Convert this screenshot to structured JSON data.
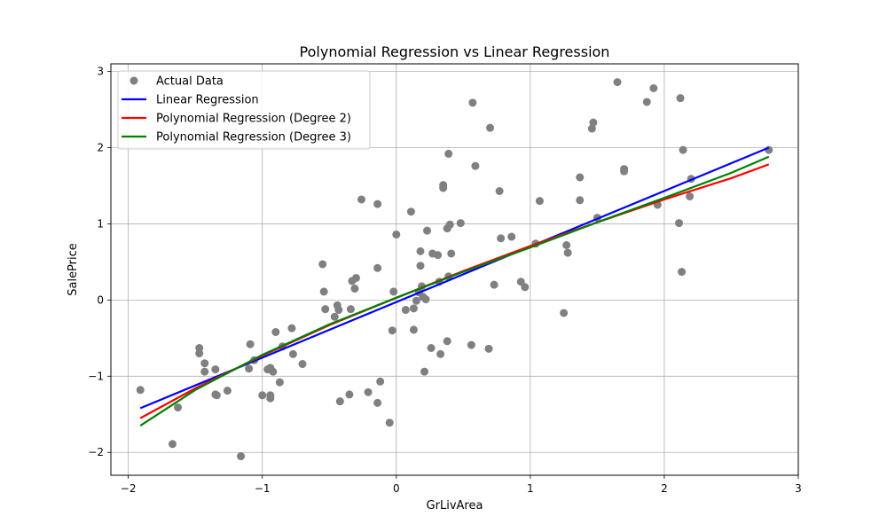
{
  "chart_data": {
    "type": "scatter",
    "title": "Polynomial Regression vs Linear Regression",
    "xlabel": "GrLivArea",
    "ylabel": "SalePrice",
    "xlim": [
      -2.13,
      3.0
    ],
    "ylim": [
      -2.3,
      3.1
    ],
    "x_ticks": [
      -2,
      -1,
      0,
      1,
      2,
      3
    ],
    "y_ticks": [
      -2,
      -1,
      0,
      1,
      2,
      3
    ],
    "x_tick_labels": [
      "−2",
      "−1",
      "0",
      "1",
      "2",
      "3"
    ],
    "y_tick_labels": [
      "−2",
      "−1",
      "0",
      "1",
      "2",
      "3"
    ],
    "grid": true,
    "legend_position": "top-left",
    "colors": {
      "scatter": "#808080",
      "linear": "#0000ff",
      "poly2": "#ff0000",
      "poly3": "#008000"
    },
    "scatter": {
      "name": "Actual Data",
      "points": [
        [
          -1.91,
          -1.18
        ],
        [
          -1.67,
          -1.89
        ],
        [
          -1.63,
          -1.41
        ],
        [
          -1.47,
          -0.63
        ],
        [
          -1.47,
          -0.7
        ],
        [
          -1.43,
          -0.83
        ],
        [
          -1.43,
          -0.94
        ],
        [
          -1.35,
          -0.91
        ],
        [
          -1.35,
          -1.24
        ],
        [
          -1.34,
          -1.25
        ],
        [
          -1.26,
          -1.19
        ],
        [
          -1.16,
          -2.05
        ],
        [
          -1.1,
          -0.9
        ],
        [
          -1.09,
          -0.58
        ],
        [
          -1.06,
          -0.79
        ],
        [
          -1.0,
          -1.25
        ],
        [
          -0.96,
          -0.91
        ],
        [
          -0.94,
          -0.89
        ],
        [
          -0.94,
          -1.25
        ],
        [
          -0.94,
          -1.29
        ],
        [
          -0.92,
          -0.94
        ],
        [
          -0.9,
          -0.42
        ],
        [
          -0.87,
          -1.08
        ],
        [
          -0.85,
          -0.61
        ],
        [
          -0.78,
          -0.37
        ],
        [
          -0.77,
          -0.71
        ],
        [
          -0.7,
          -0.84
        ],
        [
          -0.55,
          0.47
        ],
        [
          -0.54,
          0.11
        ],
        [
          -0.53,
          -0.12
        ],
        [
          -0.46,
          -0.22
        ],
        [
          -0.44,
          -0.07
        ],
        [
          -0.43,
          -0.13
        ],
        [
          -0.42,
          -1.33
        ],
        [
          -0.35,
          -1.24
        ],
        [
          -0.34,
          -0.12
        ],
        [
          -0.33,
          0.25
        ],
        [
          -0.31,
          0.15
        ],
        [
          -0.3,
          0.29
        ],
        [
          -0.26,
          1.32
        ],
        [
          -0.21,
          -1.21
        ],
        [
          -0.14,
          0.42
        ],
        [
          -0.14,
          1.26
        ],
        [
          -0.12,
          -1.07
        ],
        [
          -0.14,
          -1.35
        ],
        [
          -0.05,
          -1.61
        ],
        [
          -0.03,
          -0.4
        ],
        [
          -0.02,
          0.11
        ],
        [
          0.0,
          0.86
        ],
        [
          0.07,
          -0.13
        ],
        [
          0.11,
          1.16
        ],
        [
          0.13,
          -0.11
        ],
        [
          0.13,
          -0.39
        ],
        [
          0.15,
          -0.01
        ],
        [
          0.17,
          0.1
        ],
        [
          0.18,
          0.64
        ],
        [
          0.18,
          0.45
        ],
        [
          0.19,
          0.18
        ],
        [
          0.2,
          0.04
        ],
        [
          0.21,
          -0.94
        ],
        [
          0.22,
          0.01
        ],
        [
          0.23,
          0.91
        ],
        [
          0.26,
          -0.63
        ],
        [
          0.27,
          0.61
        ],
        [
          0.31,
          0.59
        ],
        [
          0.32,
          0.24
        ],
        [
          0.33,
          -0.71
        ],
        [
          0.35,
          1.51
        ],
        [
          0.35,
          1.47
        ],
        [
          0.38,
          0.94
        ],
        [
          0.38,
          -0.54
        ],
        [
          0.39,
          0.31
        ],
        [
          0.39,
          1.92
        ],
        [
          0.4,
          0.99
        ],
        [
          0.41,
          0.61
        ],
        [
          0.48,
          1.01
        ],
        [
          0.56,
          -0.59
        ],
        [
          0.57,
          2.59
        ],
        [
          0.59,
          1.76
        ],
        [
          0.69,
          -0.64
        ],
        [
          0.7,
          2.26
        ],
        [
          0.73,
          0.2
        ],
        [
          0.77,
          1.43
        ],
        [
          0.78,
          0.81
        ],
        [
          0.86,
          0.83
        ],
        [
          0.93,
          0.24
        ],
        [
          0.96,
          0.17
        ],
        [
          1.04,
          0.74
        ],
        [
          1.07,
          1.3
        ],
        [
          1.25,
          -0.17
        ],
        [
          1.27,
          0.72
        ],
        [
          1.28,
          0.62
        ],
        [
          1.37,
          1.61
        ],
        [
          1.37,
          1.31
        ],
        [
          1.46,
          2.25
        ],
        [
          1.47,
          2.33
        ],
        [
          1.5,
          1.08
        ],
        [
          1.65,
          2.86
        ],
        [
          1.7,
          1.72
        ],
        [
          1.7,
          1.69
        ],
        [
          1.87,
          2.6
        ],
        [
          1.92,
          2.78
        ],
        [
          1.95,
          1.25
        ],
        [
          2.11,
          1.01
        ],
        [
          2.12,
          2.65
        ],
        [
          2.13,
          0.37
        ],
        [
          2.14,
          1.97
        ],
        [
          2.19,
          1.36
        ],
        [
          2.2,
          1.59
        ],
        [
          2.78,
          1.97
        ]
      ]
    },
    "series": [
      {
        "name": "Linear Regression",
        "type": "line",
        "x": [
          -1.91,
          2.78
        ],
        "y": [
          -1.42,
          2.0
        ]
      },
      {
        "name": "Polynomial Regression (Degree 2)",
        "type": "line",
        "x": [
          -1.91,
          -1.5,
          -1.0,
          -0.5,
          0.0,
          0.5,
          1.0,
          1.5,
          2.0,
          2.5,
          2.78
        ],
        "y": [
          -1.55,
          -1.16,
          -0.73,
          -0.33,
          0.03,
          0.38,
          0.71,
          1.02,
          1.32,
          1.6,
          1.78
        ]
      },
      {
        "name": "Polynomial Regression (Degree 3)",
        "type": "line",
        "x": [
          -1.91,
          -1.5,
          -1.0,
          -0.5,
          0.0,
          0.5,
          1.0,
          1.5,
          2.0,
          2.5,
          2.78
        ],
        "y": [
          -1.65,
          -1.18,
          -0.72,
          -0.32,
          0.03,
          0.37,
          0.69,
          1.02,
          1.34,
          1.67,
          1.88
        ]
      }
    ],
    "legend": [
      {
        "label": "Actual Data",
        "kind": "marker",
        "color": "#808080"
      },
      {
        "label": "Linear Regression",
        "kind": "line",
        "color": "#0000ff"
      },
      {
        "label": "Polynomial Regression (Degree 2)",
        "kind": "line",
        "color": "#ff0000"
      },
      {
        "label": "Polynomial Regression (Degree 3)",
        "kind": "line",
        "color": "#008000"
      }
    ]
  }
}
